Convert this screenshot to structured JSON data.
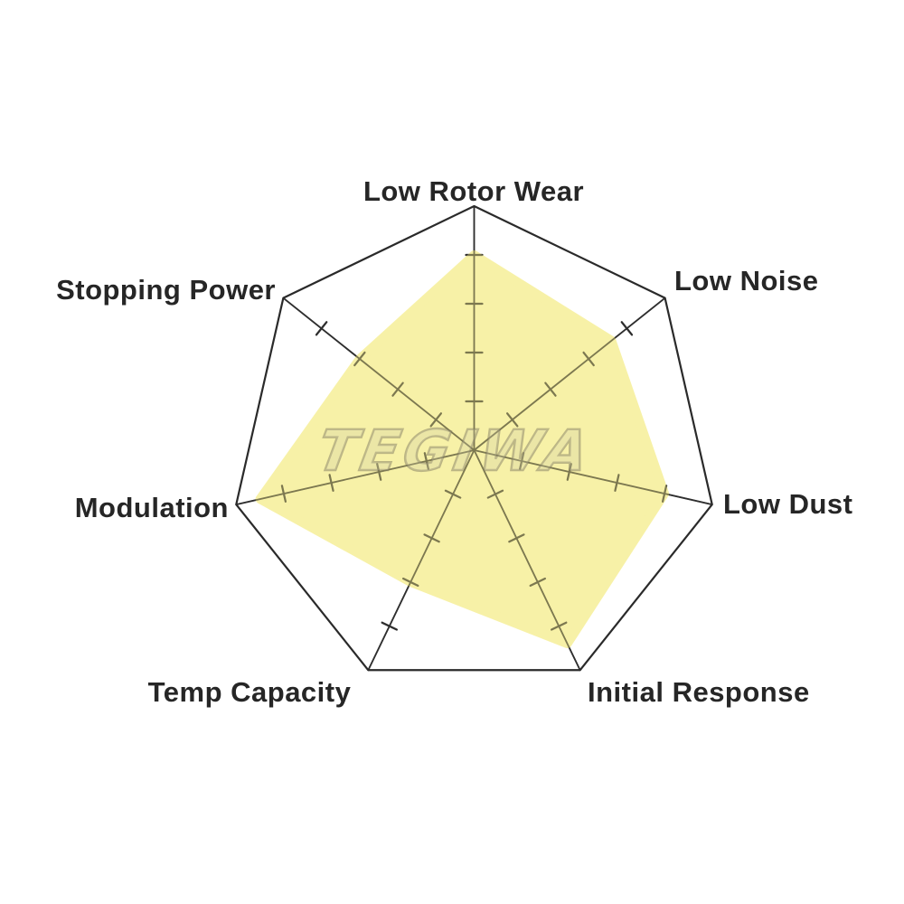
{
  "page": {
    "background_color": "#ffffff"
  },
  "watermark": {
    "text": "TEGIWA",
    "fill_color": "rgba(205,200,165,0.28)",
    "outline_color": "rgba(128,122,95,0.50)"
  },
  "chart_data": {
    "type": "radar",
    "title": "",
    "categories": [
      "Low Rotor Wear",
      "Low Noise",
      "Low Dust",
      "Initial Response",
      "Temp Capacity",
      "Modulation",
      "Stopping Power"
    ],
    "values": [
      4.0,
      3.6,
      4.0,
      4.4,
      3.0,
      4.5,
      3.0
    ],
    "scale": {
      "min": 0,
      "max": 5,
      "axis_tick_values": [
        1,
        2,
        3,
        4
      ]
    },
    "legend": "none",
    "grid": "7 radial spokes with perpendicular tick marks, single heptagonal outer ring, no concentric rings",
    "colors": {
      "fill": "#F5EC86",
      "fill_opacity": 0.72,
      "axis_line": "#2e2e2e",
      "outer_ring": "#2a2a2a",
      "label_text": "#262626"
    }
  }
}
